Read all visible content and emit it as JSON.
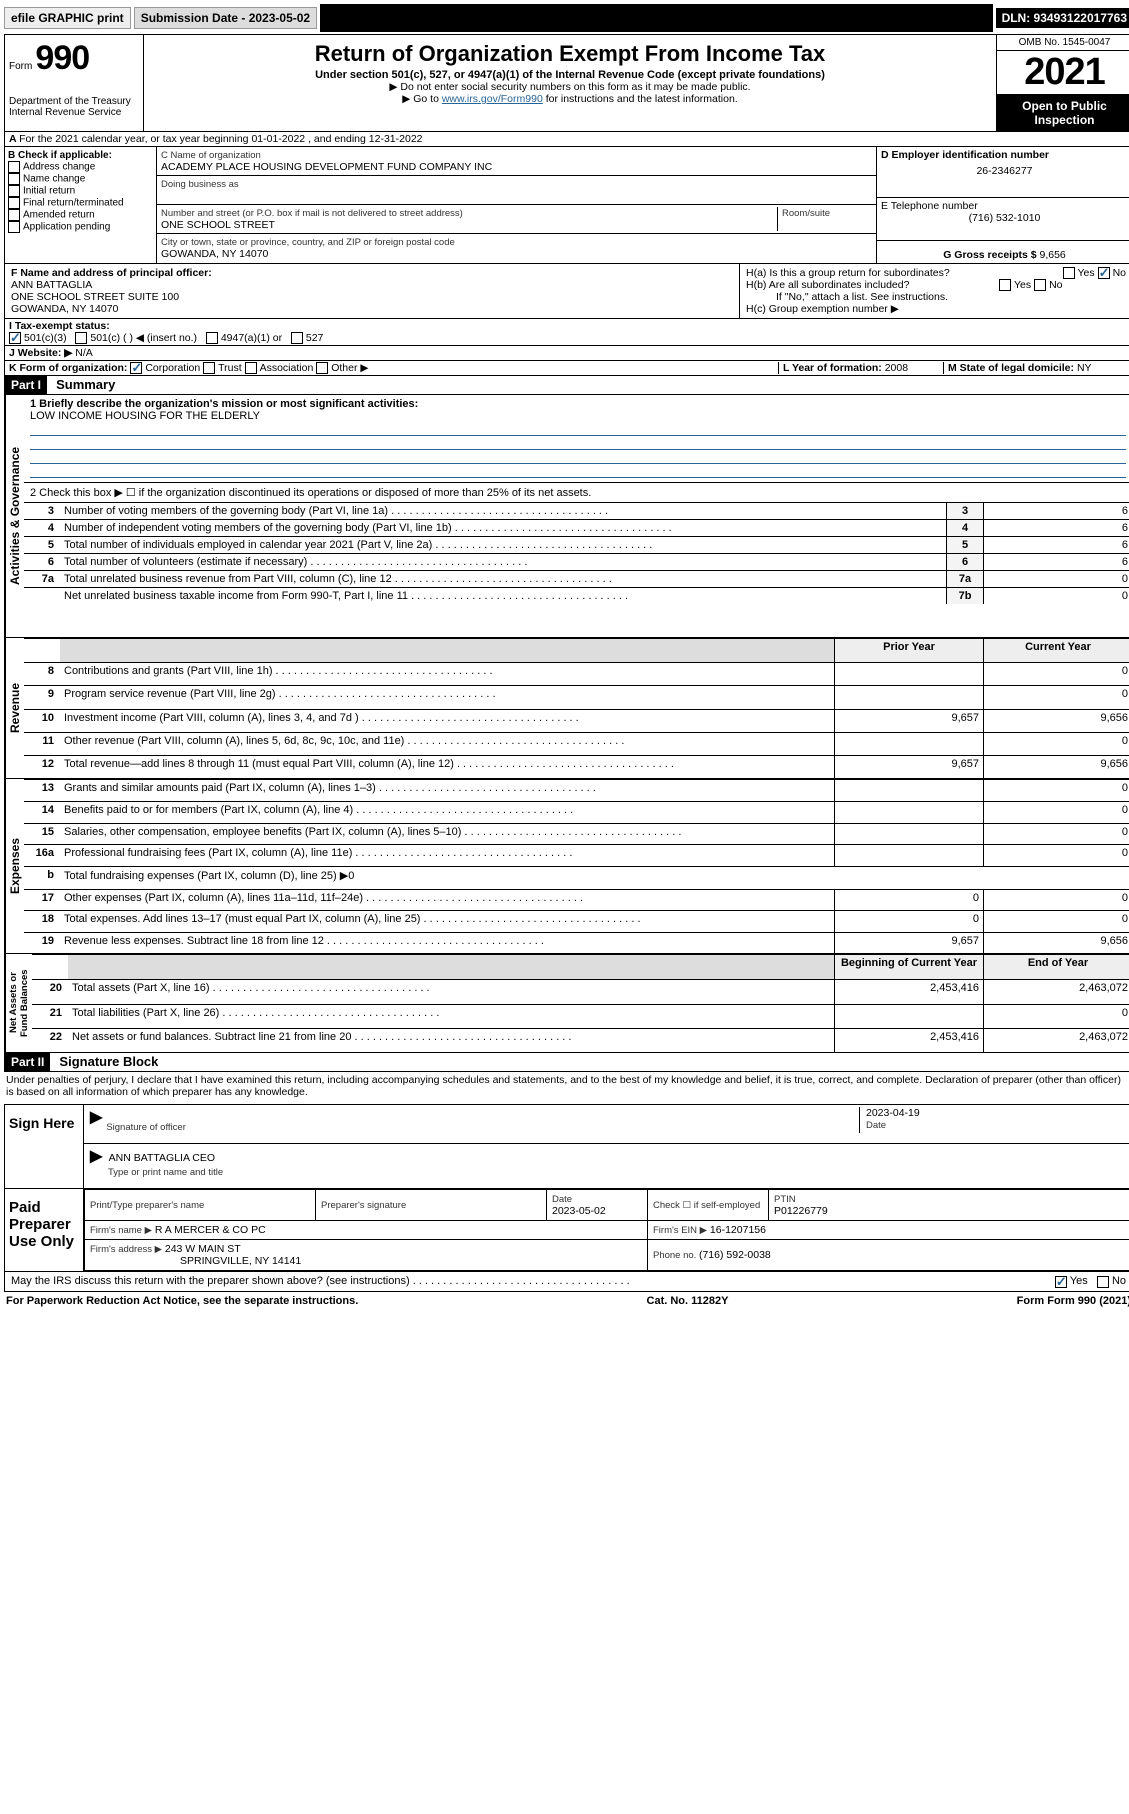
{
  "topbar": {
    "efile": "efile GRAPHIC print",
    "sub_label": "Submission Date - 2023-05-02",
    "dln": "DLN: 93493122017763"
  },
  "header": {
    "form_label": "Form",
    "form_num": "990",
    "dept": "Department of the Treasury",
    "irs": "Internal Revenue Service",
    "title": "Return of Organization Exempt From Income Tax",
    "sub1": "Under section 501(c), 527, or 4947(a)(1) of the Internal Revenue Code (except private foundations)",
    "sub2": "▶ Do not enter social security numbers on this form as it may be made public.",
    "sub3_pre": "▶ Go to ",
    "sub3_link": "www.irs.gov/Form990",
    "sub3_post": " for instructions and the latest information.",
    "omb": "OMB No. 1545-0047",
    "year": "2021",
    "otp": "Open to Public Inspection"
  },
  "period": {
    "a_line": "For the 2021 calendar year, or tax year beginning 01-01-2022    , and ending 12-31-2022"
  },
  "boxB": {
    "label": "B Check if applicable:",
    "items": [
      "Address change",
      "Name change",
      "Initial return",
      "Final return/terminated",
      "Amended return",
      "Application pending"
    ]
  },
  "boxC": {
    "name_label": "C Name of organization",
    "name": "ACADEMY PLACE HOUSING DEVELOPMENT FUND COMPANY INC",
    "dba_label": "Doing business as",
    "dba": "",
    "addr_label": "Number and street (or P.O. box if mail is not delivered to street address)",
    "addr": "ONE SCHOOL STREET",
    "room_label": "Room/suite",
    "city_label": "City or town, state or province, country, and ZIP or foreign postal code",
    "city": "GOWANDA, NY  14070"
  },
  "boxD": {
    "label": "D Employer identification number",
    "value": "26-2346277"
  },
  "boxE": {
    "label": "E Telephone number",
    "value": "(716) 532-1010"
  },
  "boxG": {
    "label": "G Gross receipts $ ",
    "value": "9,656"
  },
  "boxF": {
    "label": "F  Name and address of principal officer:",
    "name": "ANN BATTAGLIA",
    "addr1": "ONE SCHOOL STREET SUITE 100",
    "addr2": "GOWANDA, NY  14070"
  },
  "boxH": {
    "ha": "H(a)  Is this a group return for subordinates?",
    "hb": "H(b)  Are all subordinates included?",
    "hb_note": "If \"No,\" attach a list. See instructions.",
    "hc": "H(c)  Group exemption number ▶",
    "yes": "Yes",
    "no": "No"
  },
  "boxI": {
    "label": "I    Tax-exempt status:",
    "opts": [
      "501(c)(3)",
      "501(c) (  ) ◀ (insert no.)",
      "4947(a)(1) or",
      "527"
    ]
  },
  "boxJ": {
    "label": "J   Website: ▶",
    "value": "N/A"
  },
  "boxK": {
    "label": "K Form of organization:",
    "opts": [
      "Corporation",
      "Trust",
      "Association",
      "Other ▶"
    ]
  },
  "boxL": {
    "label": "L Year of formation: ",
    "value": "2008"
  },
  "boxM": {
    "label": "M State of legal domicile: ",
    "value": "NY"
  },
  "part1": {
    "hdr": "Part I",
    "title": "Summary",
    "l1_label": "1  Briefly describe the organization's mission or most significant activities:",
    "l1_text": "LOW INCOME HOUSING FOR THE ELDERLY",
    "l2": "2    Check this box ▶ ☐  if the organization discontinued its operations or disposed of more than 25% of its net assets.",
    "vtab_gov": "Activities & Governance",
    "vtab_rev": "Revenue",
    "vtab_exp": "Expenses",
    "vtab_net": "Net Assets or Fund Balances",
    "gov_rows": [
      {
        "n": "3",
        "t": "Number of voting members of the governing body (Part VI, line 1a)",
        "k": "3",
        "v": "6"
      },
      {
        "n": "4",
        "t": "Number of independent voting members of the governing body (Part VI, line 1b)",
        "k": "4",
        "v": "6"
      },
      {
        "n": "5",
        "t": "Total number of individuals employed in calendar year 2021 (Part V, line 2a)",
        "k": "5",
        "v": "6"
      },
      {
        "n": "6",
        "t": "Total number of volunteers (estimate if necessary)",
        "k": "6",
        "v": "6"
      },
      {
        "n": "7a",
        "t": "Total unrelated business revenue from Part VIII, column (C), line 12",
        "k": "7a",
        "v": "0"
      },
      {
        "n": "",
        "t": "Net unrelated business taxable income from Form 990-T, Part I, line 11",
        "k": "7b",
        "v": "0"
      }
    ],
    "col_prior": "Prior Year",
    "col_curr": "Current Year",
    "rev_rows": [
      {
        "n": "8",
        "t": "Contributions and grants (Part VIII, line 1h)",
        "p": "",
        "c": "0"
      },
      {
        "n": "9",
        "t": "Program service revenue (Part VIII, line 2g)",
        "p": "",
        "c": "0"
      },
      {
        "n": "10",
        "t": "Investment income (Part VIII, column (A), lines 3, 4, and 7d )",
        "p": "9,657",
        "c": "9,656"
      },
      {
        "n": "11",
        "t": "Other revenue (Part VIII, column (A), lines 5, 6d, 8c, 9c, 10c, and 11e)",
        "p": "",
        "c": "0"
      },
      {
        "n": "12",
        "t": "Total revenue—add lines 8 through 11 (must equal Part VIII, column (A), line 12)",
        "p": "9,657",
        "c": "9,656"
      }
    ],
    "exp_rows": [
      {
        "n": "13",
        "t": "Grants and similar amounts paid (Part IX, column (A), lines 1–3)",
        "p": "",
        "c": "0"
      },
      {
        "n": "14",
        "t": "Benefits paid to or for members (Part IX, column (A), line 4)",
        "p": "",
        "c": "0"
      },
      {
        "n": "15",
        "t": "Salaries, other compensation, employee benefits (Part IX, column (A), lines 5–10)",
        "p": "",
        "c": "0"
      },
      {
        "n": "16a",
        "t": "Professional fundraising fees (Part IX, column (A), line 11e)",
        "p": "",
        "c": "0"
      },
      {
        "n": "b",
        "t": "Total fundraising expenses (Part IX, column (D), line 25) ▶0",
        "p": null,
        "c": null
      },
      {
        "n": "17",
        "t": "Other expenses (Part IX, column (A), lines 11a–11d, 11f–24e)",
        "p": "0",
        "c": "0"
      },
      {
        "n": "18",
        "t": "Total expenses. Add lines 13–17 (must equal Part IX, column (A), line 25)",
        "p": "0",
        "c": "0"
      },
      {
        "n": "19",
        "t": "Revenue less expenses. Subtract line 18 from line 12",
        "p": "9,657",
        "c": "9,656"
      }
    ],
    "col_beg": "Beginning of Current Year",
    "col_end": "End of Year",
    "net_rows": [
      {
        "n": "20",
        "t": "Total assets (Part X, line 16)",
        "p": "2,453,416",
        "c": "2,463,072"
      },
      {
        "n": "21",
        "t": "Total liabilities (Part X, line 26)",
        "p": "",
        "c": "0"
      },
      {
        "n": "22",
        "t": "Net assets or fund balances. Subtract line 21 from line 20",
        "p": "2,453,416",
        "c": "2,463,072"
      }
    ]
  },
  "part2": {
    "hdr": "Part II",
    "title": "Signature Block",
    "decl": "Under penalties of perjury, I declare that I have examined this return, including accompanying schedules and statements, and to the best of my knowledge and belief, it is true, correct, and complete. Declaration of preparer (other than officer) is based on all information of which preparer has any knowledge.",
    "sign_here": "Sign Here",
    "sig_officer": "Signature of officer",
    "sig_date_label": "Date",
    "sig_date": "2023-04-19",
    "officer_name": "ANN BATTAGLIA CEO",
    "officer_sub": "Type or print name and title",
    "paid_prep": "Paid Preparer Use Only",
    "pp_name_label": "Print/Type preparer's name",
    "pp_sig_label": "Preparer's signature",
    "pp_date_label": "Date",
    "pp_date": "2023-05-02",
    "pp_check": "Check ☐ if self-employed",
    "pp_ptin_label": "PTIN",
    "pp_ptin": "P01226779",
    "firm_name_label": "Firm's name      ▶",
    "firm_name": "R A MERCER & CO PC",
    "firm_ein_label": "Firm's EIN ▶",
    "firm_ein": "16-1207156",
    "firm_addr_label": "Firm's address ▶",
    "firm_addr1": "243 W MAIN ST",
    "firm_addr2": "SPRINGVILLE, NY  14141",
    "firm_phone_label": "Phone no. ",
    "firm_phone": "(716) 592-0038",
    "discuss": "May the IRS discuss this return with the preparer shown above? (see instructions)",
    "yes": "Yes",
    "no": "No"
  },
  "footer": {
    "pra": "For Paperwork Reduction Act Notice, see the separate instructions.",
    "cat": "Cat. No. 11282Y",
    "form": "Form 990 (2021)"
  }
}
